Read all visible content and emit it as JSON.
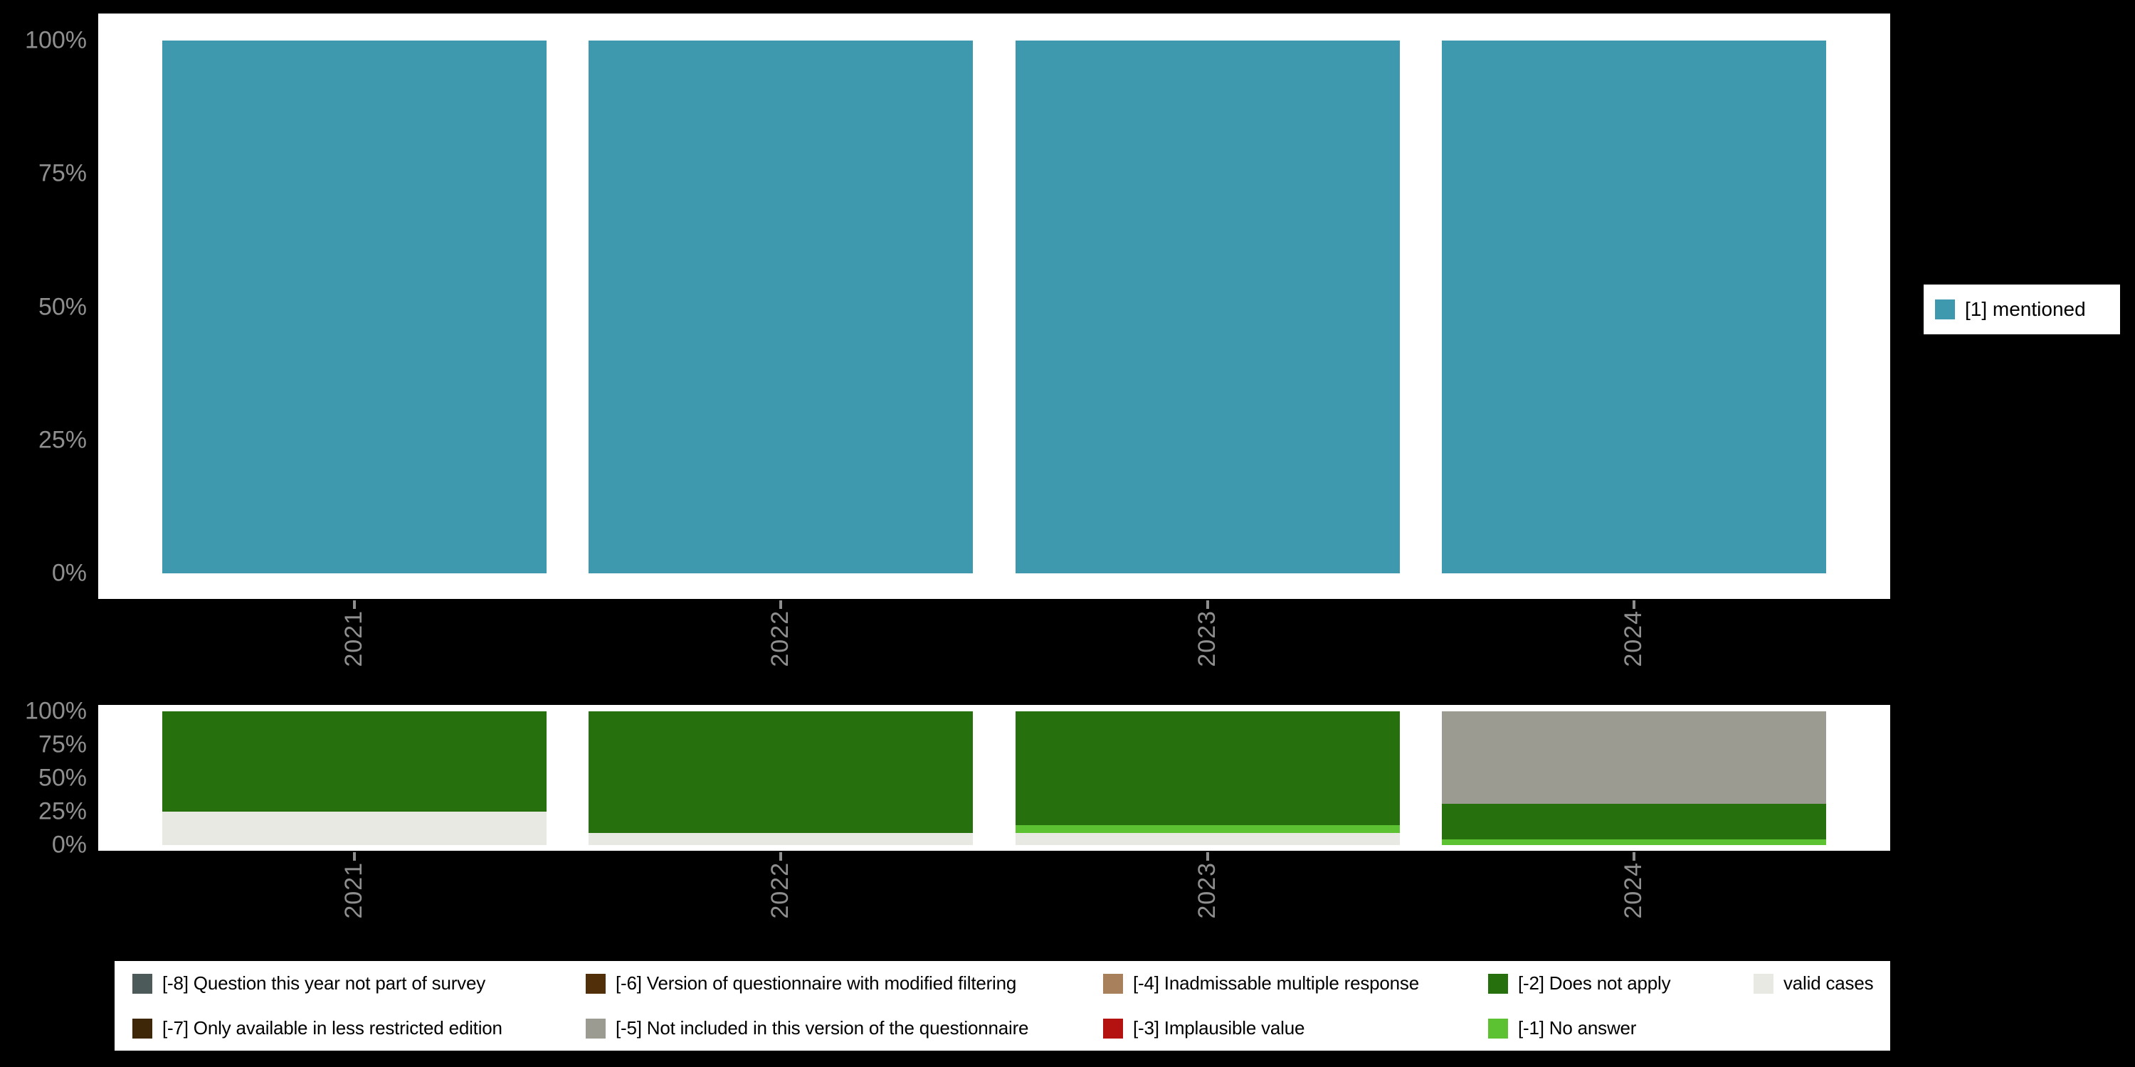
{
  "colors": {
    "background": "#000000",
    "panel": "#ffffff",
    "axis_text": "#8f8f8f"
  },
  "legend_top": {
    "items": [
      {
        "label": "[1] mentioned",
        "color": "#3e99ae"
      }
    ]
  },
  "legend_bottom": {
    "items": [
      {
        "label": "[-8] Question this year not part of survey",
        "color": "#4d5a5a"
      },
      {
        "label": "[-7] Only available in less restricted edition",
        "color": "#3e2708"
      },
      {
        "label": "[-6] Version of questionnaire with modified filtering",
        "color": "#512f08"
      },
      {
        "label": "[-5] Not included in this version of the questionnaire",
        "color": "#9b9b92"
      },
      {
        "label": "[-4] Inadmissable multiple response",
        "color": "#a8805c"
      },
      {
        "label": "[-3] Implausible value",
        "color": "#b41111"
      },
      {
        "label": "[-2] Does not apply",
        "color": "#27700e"
      },
      {
        "label": "[-1] No answer",
        "color": "#5cc232"
      },
      {
        "label": "valid cases",
        "color": "#e9e9e4"
      }
    ]
  },
  "chart_data": [
    {
      "type": "bar",
      "stacked": true,
      "title": "",
      "xlabel": "",
      "ylabel": "",
      "categories": [
        "2021",
        "2022",
        "2023",
        "2024"
      ],
      "series": [
        {
          "name": "[1] mentioned",
          "color": "#3e99ae",
          "values": [
            100,
            100,
            100,
            100
          ]
        }
      ],
      "ylim": [
        0,
        100
      ],
      "ytick_labels": [
        "0%",
        "25%",
        "50%",
        "75%",
        "100%"
      ],
      "grid": false,
      "legend_position": "right"
    },
    {
      "type": "bar",
      "stacked": true,
      "title": "",
      "xlabel": "",
      "ylabel": "",
      "categories": [
        "2021",
        "2022",
        "2023",
        "2024"
      ],
      "series": [
        {
          "name": "valid cases",
          "color": "#e9e9e4",
          "values": [
            25,
            9,
            9,
            0
          ]
        },
        {
          "name": "[-1] No answer",
          "color": "#5cc232",
          "values": [
            0,
            0,
            6,
            4
          ]
        },
        {
          "name": "[-2] Does not apply",
          "color": "#27700e",
          "values": [
            75,
            91,
            85,
            27
          ]
        },
        {
          "name": "[-5] Not included in this version of the questionnaire",
          "color": "#9b9b92",
          "values": [
            0,
            0,
            0,
            69
          ]
        }
      ],
      "ylim": [
        0,
        100
      ],
      "ytick_labels": [
        "0%",
        "25%",
        "50%",
        "75%",
        "100%"
      ],
      "grid": false,
      "legend_position": "bottom"
    }
  ]
}
